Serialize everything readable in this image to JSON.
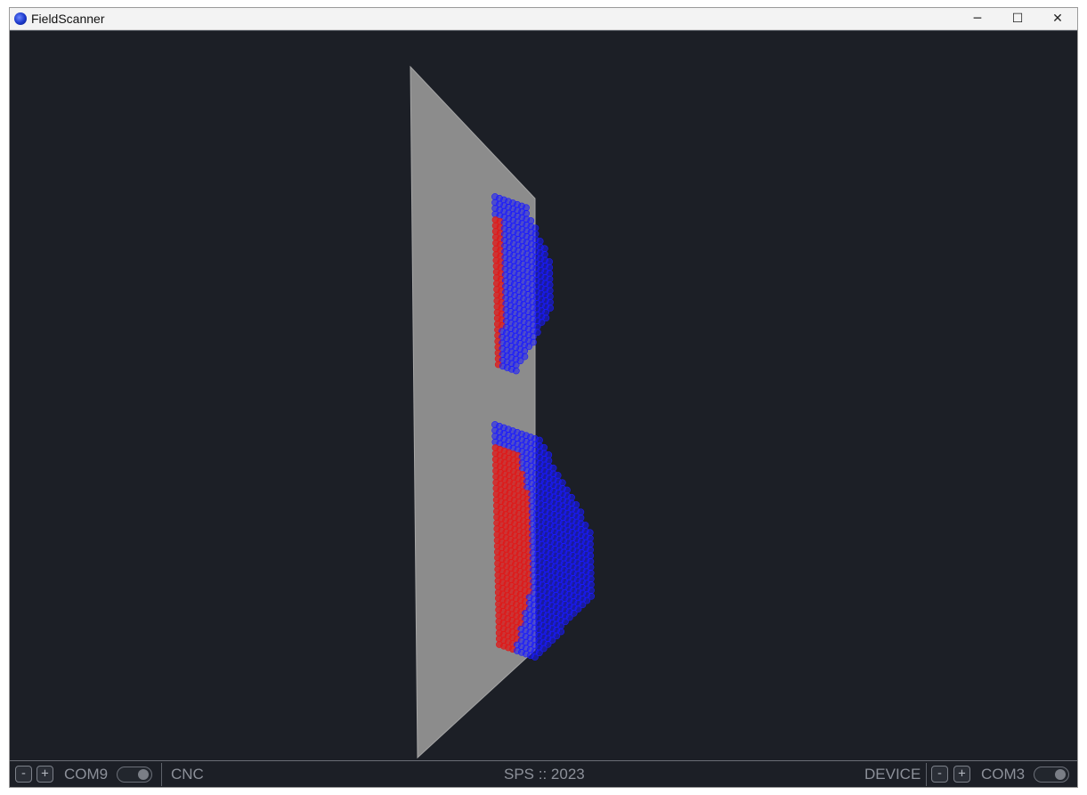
{
  "window": {
    "title": "FieldScanner",
    "icon": "app-globe-icon",
    "controls": {
      "minimize": "─",
      "maximize": "☐",
      "close": "✕"
    }
  },
  "viewport": {
    "description_icon": "3d-scan-view",
    "colors": {
      "background": "#1c1f26",
      "plane": "#8c8c8c",
      "low_field": "#1a1aff",
      "high_field": "#e01818"
    }
  },
  "statusbar": {
    "left": {
      "minus": "-",
      "plus": "+",
      "port": "COM9",
      "name": "CNC"
    },
    "center": "SPS :: 2023",
    "right": {
      "name": "DEVICE",
      "minus": "-",
      "plus": "+",
      "port": "COM3"
    }
  }
}
